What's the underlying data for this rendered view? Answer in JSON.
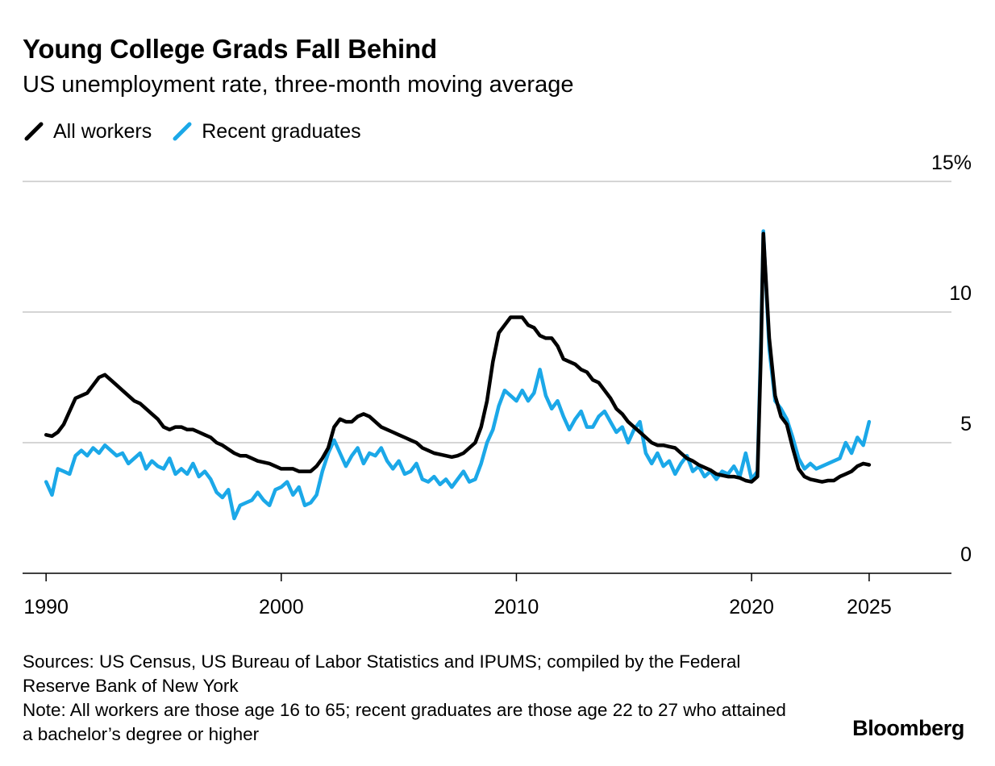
{
  "title": "Young College Grads Fall Behind",
  "subtitle": "US unemployment rate, three-month moving average",
  "legend": [
    {
      "label": "All workers",
      "color": "#000000"
    },
    {
      "label": "Recent graduates",
      "color": "#1ba8e8"
    }
  ],
  "chart_data": {
    "type": "line",
    "title": "Young College Grads Fall Behind",
    "subtitle": "US unemployment rate, three-month moving average",
    "xlabel": "",
    "ylabel": "",
    "xlim": [
      1989,
      2028.5
    ],
    "ylim": [
      0,
      15
    ],
    "x_ticks": [
      {
        "value": 1990,
        "label": "1990"
      },
      {
        "value": 2000,
        "label": "2000"
      },
      {
        "value": 2010,
        "label": "2010"
      },
      {
        "value": 2020,
        "label": "2020"
      },
      {
        "value": 2025,
        "label": "2025"
      }
    ],
    "y_ticks": [
      {
        "value": 0,
        "label": "0"
      },
      {
        "value": 5,
        "label": "5"
      },
      {
        "value": 10,
        "label": "10"
      },
      {
        "value": 15,
        "label": "15%"
      }
    ],
    "grid": true,
    "legend_position": "top-left",
    "series": [
      {
        "name": "All workers",
        "color": "#000000",
        "points": [
          [
            1990.0,
            5.3
          ],
          [
            1990.25,
            5.25
          ],
          [
            1990.5,
            5.4
          ],
          [
            1990.75,
            5.7
          ],
          [
            1991.0,
            6.2
          ],
          [
            1991.25,
            6.7
          ],
          [
            1991.5,
            6.8
          ],
          [
            1991.75,
            6.9
          ],
          [
            1992.0,
            7.2
          ],
          [
            1992.25,
            7.5
          ],
          [
            1992.5,
            7.6
          ],
          [
            1992.75,
            7.4
          ],
          [
            1993.0,
            7.2
          ],
          [
            1993.25,
            7.0
          ],
          [
            1993.5,
            6.8
          ],
          [
            1993.75,
            6.6
          ],
          [
            1994.0,
            6.5
          ],
          [
            1994.25,
            6.3
          ],
          [
            1994.5,
            6.1
          ],
          [
            1994.75,
            5.9
          ],
          [
            1995.0,
            5.6
          ],
          [
            1995.25,
            5.5
          ],
          [
            1995.5,
            5.6
          ],
          [
            1995.75,
            5.6
          ],
          [
            1996.0,
            5.5
          ],
          [
            1996.25,
            5.5
          ],
          [
            1996.5,
            5.4
          ],
          [
            1996.75,
            5.3
          ],
          [
            1997.0,
            5.2
          ],
          [
            1997.25,
            5.0
          ],
          [
            1997.5,
            4.9
          ],
          [
            1997.75,
            4.75
          ],
          [
            1998.0,
            4.6
          ],
          [
            1998.25,
            4.5
          ],
          [
            1998.5,
            4.5
          ],
          [
            1998.75,
            4.4
          ],
          [
            1999.0,
            4.3
          ],
          [
            1999.25,
            4.25
          ],
          [
            1999.5,
            4.2
          ],
          [
            1999.75,
            4.1
          ],
          [
            2000.0,
            4.0
          ],
          [
            2000.25,
            4.0
          ],
          [
            2000.5,
            4.0
          ],
          [
            2000.75,
            3.9
          ],
          [
            2001.0,
            3.9
          ],
          [
            2001.25,
            3.9
          ],
          [
            2001.5,
            4.1
          ],
          [
            2001.75,
            4.4
          ],
          [
            2002.0,
            4.8
          ],
          [
            2002.25,
            5.6
          ],
          [
            2002.5,
            5.9
          ],
          [
            2002.75,
            5.8
          ],
          [
            2003.0,
            5.8
          ],
          [
            2003.25,
            6.0
          ],
          [
            2003.5,
            6.1
          ],
          [
            2003.75,
            6.0
          ],
          [
            2004.0,
            5.8
          ],
          [
            2004.25,
            5.6
          ],
          [
            2004.5,
            5.5
          ],
          [
            2004.75,
            5.4
          ],
          [
            2005.0,
            5.3
          ],
          [
            2005.25,
            5.2
          ],
          [
            2005.5,
            5.1
          ],
          [
            2005.75,
            5.0
          ],
          [
            2006.0,
            4.8
          ],
          [
            2006.25,
            4.7
          ],
          [
            2006.5,
            4.6
          ],
          [
            2006.75,
            4.55
          ],
          [
            2007.0,
            4.5
          ],
          [
            2007.25,
            4.45
          ],
          [
            2007.5,
            4.5
          ],
          [
            2007.75,
            4.6
          ],
          [
            2008.0,
            4.8
          ],
          [
            2008.25,
            5.0
          ],
          [
            2008.5,
            5.6
          ],
          [
            2008.75,
            6.6
          ],
          [
            2009.0,
            8.1
          ],
          [
            2009.25,
            9.2
          ],
          [
            2009.5,
            9.5
          ],
          [
            2009.75,
            9.8
          ],
          [
            2010.0,
            9.8
          ],
          [
            2010.25,
            9.8
          ],
          [
            2010.5,
            9.5
          ],
          [
            2010.75,
            9.4
          ],
          [
            2011.0,
            9.1
          ],
          [
            2011.25,
            9.0
          ],
          [
            2011.5,
            9.0
          ],
          [
            2011.75,
            8.7
          ],
          [
            2012.0,
            8.2
          ],
          [
            2012.25,
            8.1
          ],
          [
            2012.5,
            8.0
          ],
          [
            2012.75,
            7.8
          ],
          [
            2013.0,
            7.7
          ],
          [
            2013.25,
            7.4
          ],
          [
            2013.5,
            7.3
          ],
          [
            2013.75,
            7.0
          ],
          [
            2014.0,
            6.7
          ],
          [
            2014.25,
            6.3
          ],
          [
            2014.5,
            6.1
          ],
          [
            2014.75,
            5.8
          ],
          [
            2015.0,
            5.6
          ],
          [
            2015.25,
            5.4
          ],
          [
            2015.5,
            5.2
          ],
          [
            2015.75,
            5.0
          ],
          [
            2016.0,
            4.9
          ],
          [
            2016.25,
            4.9
          ],
          [
            2016.5,
            4.85
          ],
          [
            2016.75,
            4.8
          ],
          [
            2017.0,
            4.6
          ],
          [
            2017.25,
            4.4
          ],
          [
            2017.5,
            4.3
          ],
          [
            2017.75,
            4.15
          ],
          [
            2018.0,
            4.05
          ],
          [
            2018.25,
            3.95
          ],
          [
            2018.5,
            3.8
          ],
          [
            2018.75,
            3.75
          ],
          [
            2019.0,
            3.7
          ],
          [
            2019.25,
            3.7
          ],
          [
            2019.5,
            3.65
          ],
          [
            2019.75,
            3.55
          ],
          [
            2020.0,
            3.5
          ],
          [
            2020.25,
            3.7
          ],
          [
            2020.4,
            8.5
          ],
          [
            2020.5,
            13.0
          ],
          [
            2020.75,
            9.0
          ],
          [
            2021.0,
            6.8
          ],
          [
            2021.25,
            6.0
          ],
          [
            2021.5,
            5.7
          ],
          [
            2021.75,
            4.8
          ],
          [
            2022.0,
            4.0
          ],
          [
            2022.25,
            3.7
          ],
          [
            2022.5,
            3.6
          ],
          [
            2022.75,
            3.55
          ],
          [
            2023.0,
            3.5
          ],
          [
            2023.25,
            3.55
          ],
          [
            2023.5,
            3.55
          ],
          [
            2023.75,
            3.7
          ],
          [
            2024.0,
            3.8
          ],
          [
            2024.25,
            3.9
          ],
          [
            2024.5,
            4.1
          ],
          [
            2024.75,
            4.2
          ],
          [
            2025.0,
            4.15
          ]
        ]
      },
      {
        "name": "Recent graduates",
        "color": "#1ba8e8",
        "points": [
          [
            1990.0,
            3.5
          ],
          [
            1990.25,
            3.0
          ],
          [
            1990.5,
            4.0
          ],
          [
            1990.75,
            3.9
          ],
          [
            1991.0,
            3.8
          ],
          [
            1991.25,
            4.5
          ],
          [
            1991.5,
            4.7
          ],
          [
            1991.75,
            4.5
          ],
          [
            1992.0,
            4.8
          ],
          [
            1992.25,
            4.6
          ],
          [
            1992.5,
            4.9
          ],
          [
            1992.75,
            4.7
          ],
          [
            1993.0,
            4.5
          ],
          [
            1993.25,
            4.6
          ],
          [
            1993.5,
            4.2
          ],
          [
            1993.75,
            4.4
          ],
          [
            1994.0,
            4.6
          ],
          [
            1994.25,
            4.0
          ],
          [
            1994.5,
            4.3
          ],
          [
            1994.75,
            4.1
          ],
          [
            1995.0,
            4.0
          ],
          [
            1995.25,
            4.4
          ],
          [
            1995.5,
            3.8
          ],
          [
            1995.75,
            4.0
          ],
          [
            1996.0,
            3.8
          ],
          [
            1996.25,
            4.2
          ],
          [
            1996.5,
            3.7
          ],
          [
            1996.75,
            3.9
          ],
          [
            1997.0,
            3.6
          ],
          [
            1997.25,
            3.1
          ],
          [
            1997.5,
            2.9
          ],
          [
            1997.75,
            3.2
          ],
          [
            1998.0,
            2.1
          ],
          [
            1998.25,
            2.6
          ],
          [
            1998.5,
            2.7
          ],
          [
            1998.75,
            2.8
          ],
          [
            1999.0,
            3.1
          ],
          [
            1999.25,
            2.8
          ],
          [
            1999.5,
            2.6
          ],
          [
            1999.75,
            3.2
          ],
          [
            2000.0,
            3.3
          ],
          [
            2000.25,
            3.5
          ],
          [
            2000.5,
            3.0
          ],
          [
            2000.75,
            3.3
          ],
          [
            2001.0,
            2.6
          ],
          [
            2001.25,
            2.7
          ],
          [
            2001.5,
            3.0
          ],
          [
            2001.75,
            3.9
          ],
          [
            2002.0,
            4.6
          ],
          [
            2002.25,
            5.1
          ],
          [
            2002.5,
            4.6
          ],
          [
            2002.75,
            4.1
          ],
          [
            2003.0,
            4.5
          ],
          [
            2003.25,
            4.8
          ],
          [
            2003.5,
            4.2
          ],
          [
            2003.75,
            4.6
          ],
          [
            2004.0,
            4.5
          ],
          [
            2004.25,
            4.8
          ],
          [
            2004.5,
            4.3
          ],
          [
            2004.75,
            4.0
          ],
          [
            2005.0,
            4.3
          ],
          [
            2005.25,
            3.8
          ],
          [
            2005.5,
            3.9
          ],
          [
            2005.75,
            4.2
          ],
          [
            2006.0,
            3.6
          ],
          [
            2006.25,
            3.5
          ],
          [
            2006.5,
            3.7
          ],
          [
            2006.75,
            3.4
          ],
          [
            2007.0,
            3.6
          ],
          [
            2007.25,
            3.3
          ],
          [
            2007.5,
            3.6
          ],
          [
            2007.75,
            3.9
          ],
          [
            2008.0,
            3.5
          ],
          [
            2008.25,
            3.6
          ],
          [
            2008.5,
            4.2
          ],
          [
            2008.75,
            5.0
          ],
          [
            2009.0,
            5.5
          ],
          [
            2009.25,
            6.4
          ],
          [
            2009.5,
            7.0
          ],
          [
            2009.75,
            6.8
          ],
          [
            2010.0,
            6.6
          ],
          [
            2010.25,
            7.0
          ],
          [
            2010.5,
            6.6
          ],
          [
            2010.75,
            6.9
          ],
          [
            2011.0,
            7.8
          ],
          [
            2011.25,
            6.8
          ],
          [
            2011.5,
            6.3
          ],
          [
            2011.75,
            6.6
          ],
          [
            2012.0,
            6.0
          ],
          [
            2012.25,
            5.5
          ],
          [
            2012.5,
            5.9
          ],
          [
            2012.75,
            6.2
          ],
          [
            2013.0,
            5.6
          ],
          [
            2013.25,
            5.6
          ],
          [
            2013.5,
            6.0
          ],
          [
            2013.75,
            6.2
          ],
          [
            2014.0,
            5.8
          ],
          [
            2014.25,
            5.4
          ],
          [
            2014.5,
            5.6
          ],
          [
            2014.75,
            5.0
          ],
          [
            2015.0,
            5.5
          ],
          [
            2015.25,
            5.8
          ],
          [
            2015.5,
            4.6
          ],
          [
            2015.75,
            4.2
          ],
          [
            2016.0,
            4.6
          ],
          [
            2016.25,
            4.1
          ],
          [
            2016.5,
            4.3
          ],
          [
            2016.75,
            3.8
          ],
          [
            2017.0,
            4.2
          ],
          [
            2017.25,
            4.5
          ],
          [
            2017.5,
            3.9
          ],
          [
            2017.75,
            4.1
          ],
          [
            2018.0,
            3.7
          ],
          [
            2018.25,
            3.9
          ],
          [
            2018.5,
            3.6
          ],
          [
            2018.75,
            3.9
          ],
          [
            2019.0,
            3.8
          ],
          [
            2019.25,
            4.1
          ],
          [
            2019.5,
            3.7
          ],
          [
            2019.75,
            4.6
          ],
          [
            2020.0,
            3.6
          ],
          [
            2020.25,
            3.9
          ],
          [
            2020.4,
            9.0
          ],
          [
            2020.5,
            13.1
          ],
          [
            2020.75,
            8.6
          ],
          [
            2021.0,
            6.6
          ],
          [
            2021.25,
            6.3
          ],
          [
            2021.5,
            5.9
          ],
          [
            2021.75,
            5.2
          ],
          [
            2022.0,
            4.4
          ],
          [
            2022.25,
            4.0
          ],
          [
            2022.5,
            4.2
          ],
          [
            2022.75,
            4.0
          ],
          [
            2023.0,
            4.1
          ],
          [
            2023.25,
            4.2
          ],
          [
            2023.5,
            4.3
          ],
          [
            2023.75,
            4.4
          ],
          [
            2024.0,
            5.0
          ],
          [
            2024.25,
            4.6
          ],
          [
            2024.5,
            5.2
          ],
          [
            2024.75,
            4.9
          ],
          [
            2025.0,
            5.8
          ]
        ]
      }
    ]
  },
  "footer": {
    "sources": "Sources: US Census, US Bureau of Labor Statistics and IPUMS; compiled by the Federal Reserve Bank of New York",
    "note": "Note: All workers are those age 16 to 65; recent graduates are those age 22 to 27 who attained a bachelor’s degree or higher"
  },
  "brand": "Bloomberg"
}
